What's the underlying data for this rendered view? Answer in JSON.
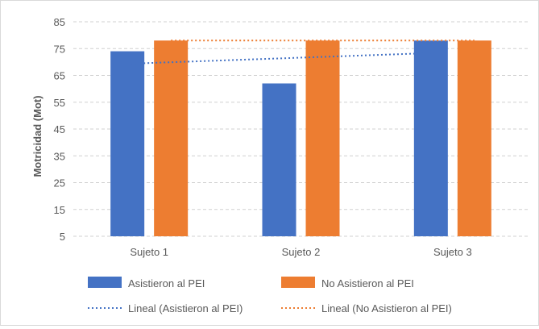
{
  "chart_data": {
    "type": "bar",
    "ylabel": "Motricidad (Mot)",
    "xlabel": "",
    "ylim": [
      5,
      85
    ],
    "yticks": [
      5,
      15,
      25,
      35,
      45,
      55,
      65,
      75,
      85
    ],
    "categories": [
      "Sujeto 1",
      "Sujeto 2",
      "Sujeto 3"
    ],
    "grid": "horizontal-dashed",
    "legend_position": "bottom",
    "series": [
      {
        "name": "Asistieron al PEI",
        "values": [
          74,
          62,
          78
        ],
        "color": "#4472c4"
      },
      {
        "name": "No Asistieron al PEI",
        "values": [
          78,
          78,
          78
        ],
        "color": "#ed7d31"
      }
    ],
    "trendlines": [
      {
        "name": "Lineal (Asistieron al PEI)",
        "type": "linear",
        "of_series": "Asistieron al PEI",
        "color": "#4472c4",
        "style": "dotted"
      },
      {
        "name": "Lineal (No Asistieron al PEI)",
        "type": "linear",
        "of_series": "No Asistieron al PEI",
        "color": "#ed7d31",
        "style": "dotted"
      }
    ]
  }
}
